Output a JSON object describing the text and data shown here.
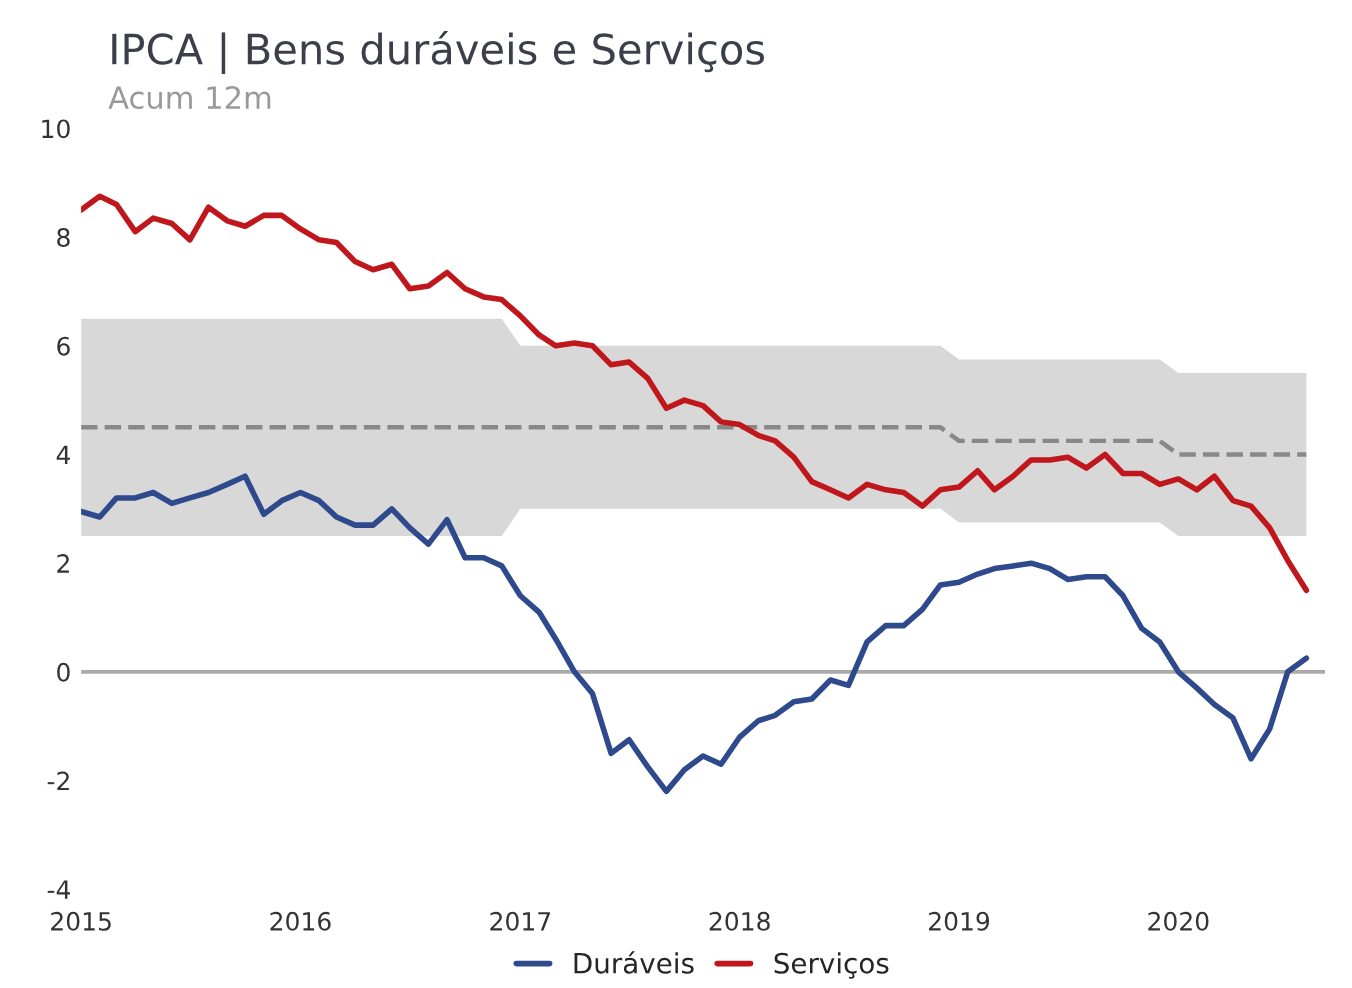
{
  "chart_data": {
    "type": "line",
    "title": "IPCA | Bens duráveis e Serviços",
    "subtitle": "Acum 12m",
    "x": [
      "2015-01",
      "2015-02",
      "2015-03",
      "2015-04",
      "2015-05",
      "2015-06",
      "2015-07",
      "2015-08",
      "2015-09",
      "2015-10",
      "2015-11",
      "2015-12",
      "2016-01",
      "2016-02",
      "2016-03",
      "2016-04",
      "2016-05",
      "2016-06",
      "2016-07",
      "2016-08",
      "2016-09",
      "2016-10",
      "2016-11",
      "2016-12",
      "2017-01",
      "2017-02",
      "2017-03",
      "2017-04",
      "2017-05",
      "2017-06",
      "2017-07",
      "2017-08",
      "2017-09",
      "2017-10",
      "2017-11",
      "2017-12",
      "2018-01",
      "2018-02",
      "2018-03",
      "2018-04",
      "2018-05",
      "2018-06",
      "2018-07",
      "2018-08",
      "2018-09",
      "2018-10",
      "2018-11",
      "2018-12",
      "2019-01",
      "2019-02",
      "2019-03",
      "2019-04",
      "2019-05",
      "2019-06",
      "2019-07",
      "2019-08",
      "2019-09",
      "2019-10",
      "2019-11",
      "2019-12",
      "2020-01",
      "2020-02",
      "2020-03",
      "2020-04",
      "2020-05",
      "2020-06",
      "2020-07",
      "2020-08"
    ],
    "series": [
      {
        "color": "#888888",
        "line_style": "dashed",
        "values": [
          4.5,
          4.5,
          4.5,
          4.5,
          4.5,
          4.5,
          4.5,
          4.5,
          4.5,
          4.5,
          4.5,
          4.5,
          4.5,
          4.5,
          4.5,
          4.5,
          4.5,
          4.5,
          4.5,
          4.5,
          4.5,
          4.5,
          4.5,
          4.5,
          4.5,
          4.5,
          4.5,
          4.5,
          4.5,
          4.5,
          4.5,
          4.5,
          4.5,
          4.5,
          4.5,
          4.5,
          4.5,
          4.5,
          4.5,
          4.5,
          4.5,
          4.5,
          4.5,
          4.5,
          4.5,
          4.5,
          4.5,
          4.5,
          4.25,
          4.25,
          4.25,
          4.25,
          4.25,
          4.25,
          4.25,
          4.25,
          4.25,
          4.25,
          4.25,
          4.25,
          4.0,
          4.0,
          4.0,
          4.0,
          4.0,
          4.0,
          4.0,
          4.0
        ],
        "lower": [
          2.5,
          2.5,
          2.5,
          2.5,
          2.5,
          2.5,
          2.5,
          2.5,
          2.5,
          2.5,
          2.5,
          2.5,
          2.5,
          2.5,
          2.5,
          2.5,
          2.5,
          2.5,
          2.5,
          2.5,
          2.5,
          2.5,
          2.5,
          2.5,
          3,
          3,
          3,
          3,
          3,
          3,
          3,
          3,
          3,
          3,
          3,
          3,
          3,
          3,
          3,
          3,
          3,
          3,
          3,
          3,
          3,
          3,
          3,
          3,
          2.75,
          2.75,
          2.75,
          2.75,
          2.75,
          2.75,
          2.75,
          2.75,
          2.75,
          2.75,
          2.75,
          2.75,
          2.5,
          2.5,
          2.5,
          2.5,
          2.5,
          2.5,
          2.5,
          2.5
        ],
        "upper": [
          6.5,
          6.5,
          6.5,
          6.5,
          6.5,
          6.5,
          6.5,
          6.5,
          6.5,
          6.5,
          6.5,
          6.5,
          6.5,
          6.5,
          6.5,
          6.5,
          6.5,
          6.5,
          6.5,
          6.5,
          6.5,
          6.5,
          6.5,
          6.5,
          6,
          6,
          6,
          6,
          6,
          6,
          6,
          6,
          6,
          6,
          6,
          6,
          6,
          6,
          6,
          6,
          6,
          6,
          6,
          6,
          6,
          6,
          6,
          6,
          5.75,
          5.75,
          5.75,
          5.75,
          5.75,
          5.75,
          5.75,
          5.75,
          5.75,
          5.75,
          5.75,
          5.75,
          5.5,
          5.5,
          5.5,
          5.5,
          5.5,
          5.5,
          5.5,
          5.5
        ]
      },
      {
        "name": "Duráveis",
        "color": "#2e4a8c",
        "values": [
          2.95,
          2.85,
          3.2,
          3.2,
          3.3,
          3.1,
          3.2,
          3.3,
          3.45,
          3.6,
          2.9,
          3.15,
          3.3,
          3.15,
          2.85,
          2.7,
          2.7,
          3.0,
          2.65,
          2.35,
          2.8,
          2.1,
          2.1,
          1.95,
          1.4,
          1.1,
          0.6,
          0.0,
          -0.4,
          -1.5,
          -1.25,
          -1.75,
          -2.2,
          -1.8,
          -1.55,
          -1.7,
          -1.2,
          -0.9,
          -0.8,
          -0.55,
          -0.5,
          -0.15,
          -0.25,
          0.55,
          0.85,
          0.85,
          1.15,
          1.6,
          1.65,
          1.8,
          1.9,
          1.95,
          2.0,
          1.9,
          1.7,
          1.75,
          1.75,
          1.4,
          0.8,
          0.55,
          0.0,
          -0.3,
          -0.6,
          -0.85,
          -1.6,
          -1.05,
          0.0,
          0.25
        ]
      },
      {
        "name": "Serviços",
        "color": "#c0171d",
        "values": [
          8.5,
          8.75,
          8.6,
          8.1,
          8.35,
          8.25,
          7.95,
          8.55,
          8.3,
          8.2,
          8.4,
          8.4,
          8.15,
          7.95,
          7.9,
          7.55,
          7.4,
          7.5,
          7.05,
          7.1,
          7.35,
          7.05,
          6.9,
          6.85,
          6.55,
          6.2,
          6.0,
          6.05,
          6.0,
          5.65,
          5.7,
          5.4,
          4.85,
          5.0,
          4.9,
          4.6,
          4.55,
          4.35,
          4.25,
          3.95,
          3.5,
          3.35,
          3.2,
          3.45,
          3.35,
          3.3,
          3.05,
          3.35,
          3.4,
          3.7,
          3.35,
          3.6,
          3.9,
          3.9,
          3.95,
          3.75,
          4.0,
          3.65,
          3.65,
          3.45,
          3.55,
          3.35,
          3.6,
          3.15,
          3.05,
          2.65,
          2.05,
          1.5
        ]
      }
    ],
    "ref_lines": [
      {
        "axis": "y",
        "value": 0,
        "color": "#aaaaaa"
      }
    ],
    "xlim": [
      "2015-01",
      "2020-09"
    ],
    "xticks": [
      "2015",
      "2016",
      "2017",
      "2018",
      "2019",
      "2020"
    ],
    "ylim": [
      -4,
      10
    ],
    "yticks": [
      -4,
      -2,
      0,
      2,
      4,
      6,
      8,
      10
    ],
    "grid": false,
    "legend": "bottom",
    "marker": "none",
    "line_style": "solid"
  }
}
